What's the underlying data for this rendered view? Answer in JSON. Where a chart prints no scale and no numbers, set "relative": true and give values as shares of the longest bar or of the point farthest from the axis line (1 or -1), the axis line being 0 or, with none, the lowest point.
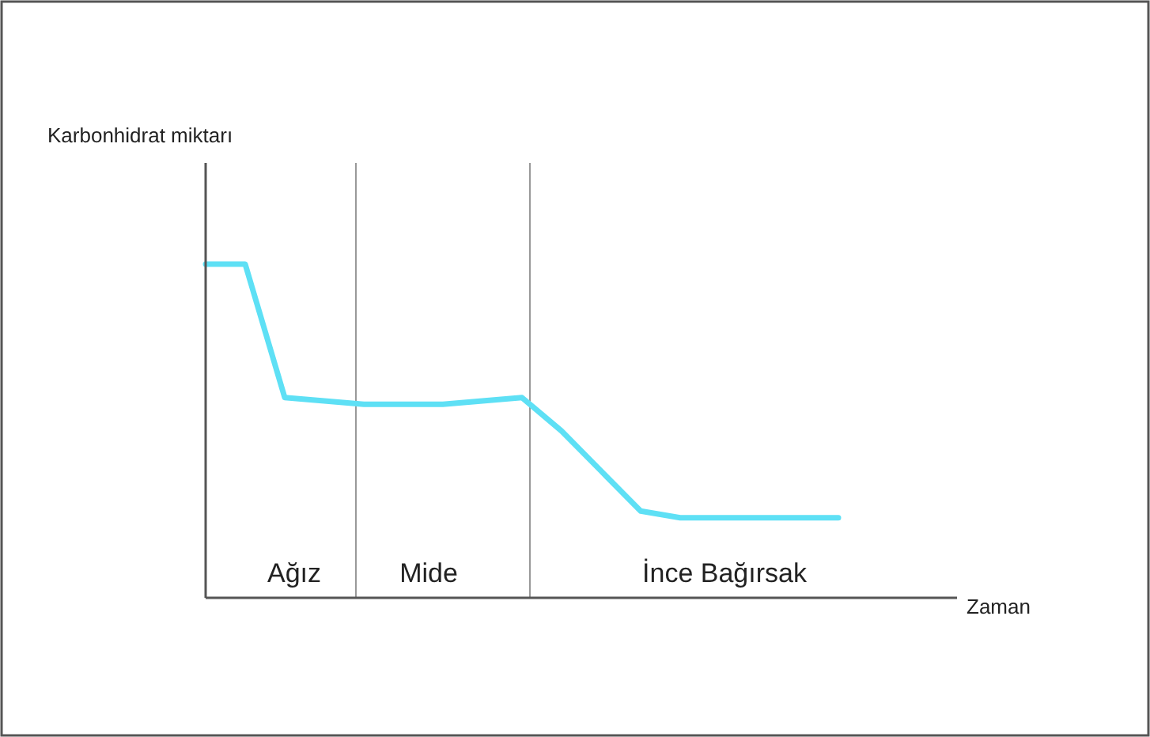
{
  "chart_data": {
    "type": "line",
    "relative": true,
    "xlabel": "Zaman",
    "categories": [
      null,
      null,
      null,
      null,
      null,
      null,
      null,
      null,
      null,
      null,
      null,
      null,
      null,
      null,
      null,
      null,
      null,
      null,
      null,
      null
    ],
    "series": [
      {
        "color": "#5ee0f5",
        "values": [
          1,
          1,
          0.6,
          0.59,
          0.58,
          0.58,
          0.58,
          0.59,
          0.6,
          0.5,
          0.38,
          0.26,
          0.24,
          0.24,
          0.24,
          0.24,
          0.24,
          null,
          null,
          null
        ]
      }
    ],
    "annotations": [
      "Karbonhidrat miktarı",
      "Ağız",
      "Mide",
      "İnce Bağırsak"
    ],
    "marker": "none",
    "line_style": "solid"
  }
}
